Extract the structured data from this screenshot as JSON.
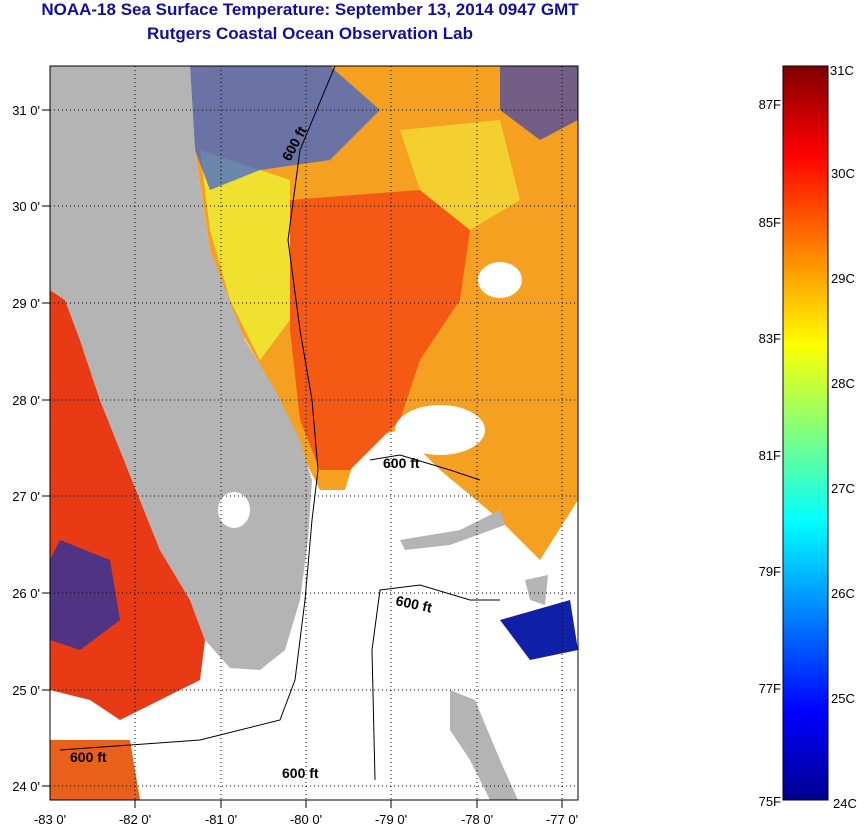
{
  "header": {
    "title": "NOAA-18 Sea Surface Temperature:  September 13, 2014 0947 GMT",
    "subtitle": "Rutgers Coastal Ocean Observation Lab"
  },
  "map": {
    "lon_labels": [
      "-83 0'",
      "-82 0'",
      "-81 0'",
      "-80 0'",
      "-79 0'",
      "-78 0'",
      "-77 0'"
    ],
    "lat_labels": [
      "31 0'",
      "30 0'",
      "29 0'",
      "28 0'",
      "27 0'",
      "26 0'",
      "25 0'",
      "24 0'"
    ],
    "lon_range": [
      -83.0,
      -76.83
    ],
    "lat_range": [
      23.84,
      31.45
    ],
    "contour_labels": [
      "600 ft",
      "600 ft",
      "600 ft",
      "600 ft",
      "600 ft"
    ],
    "land_color": "#b4b4b4",
    "cloud_color": "#ffffff"
  },
  "colorbar": {
    "celsius_labels": [
      "31C",
      "30C",
      "29C",
      "28C",
      "27C",
      "26C",
      "25C",
      "24C"
    ],
    "fahrenheit_labels": [
      "87F",
      "85F",
      "83F",
      "81F",
      "79F",
      "77F",
      "75F"
    ],
    "range_c": [
      24,
      31
    ],
    "colormap": [
      "#00008f",
      "#0000ff",
      "#00ffff",
      "#ffff00",
      "#ff0000",
      "#800000"
    ]
  }
}
